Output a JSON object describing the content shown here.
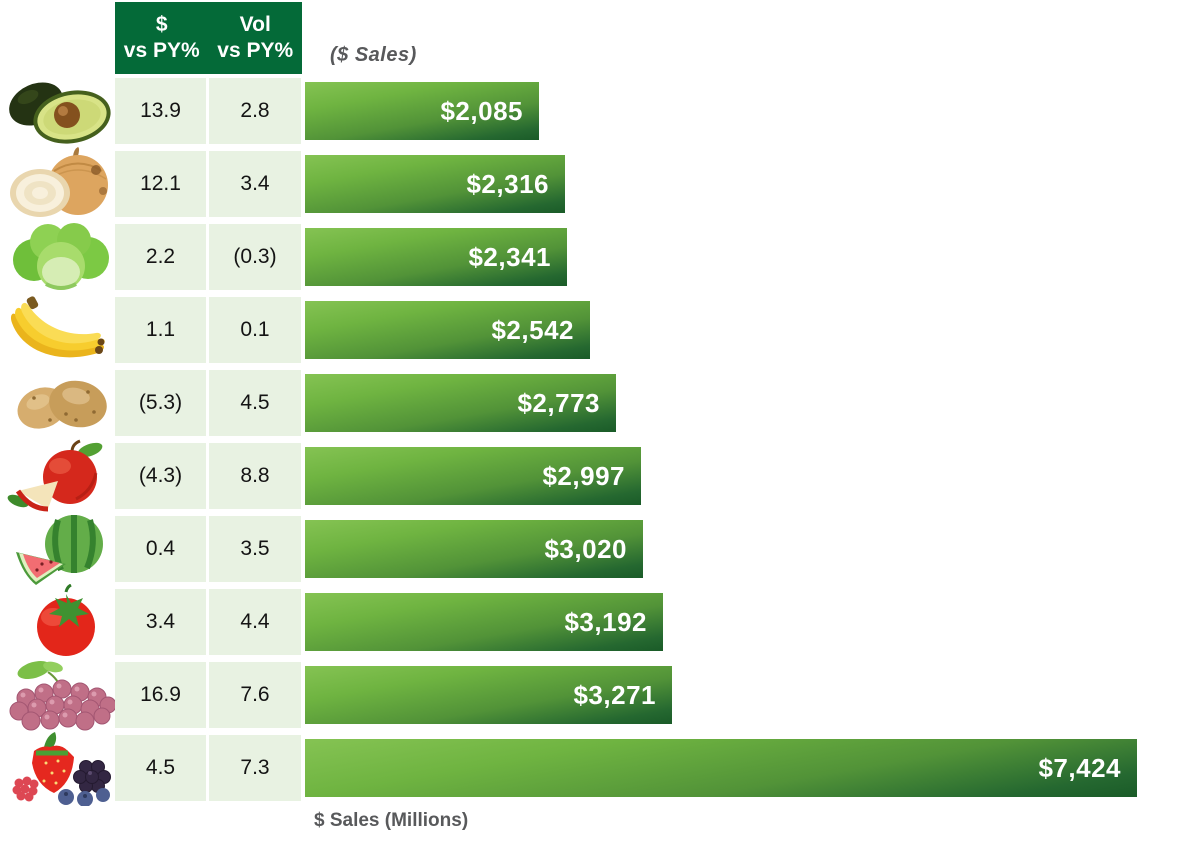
{
  "title": "($ Sales)",
  "axis_label": "$ Sales (Millions)",
  "header": {
    "dollar_col": "$\nvs PY%",
    "vol_col": "Vol\nvs PY%"
  },
  "colors": {
    "header_green": "#046a38",
    "row_bg_green": "#e8f2e2",
    "bar_gradient_top": "#85c353",
    "bar_gradient_bottom": "#1a5b28",
    "label_gray": "#58595b",
    "bar_text": "#ffffff"
  },
  "rows": [
    {
      "item": "avocado",
      "icon": "avocado-icon",
      "dollar_vs_py": "13.9",
      "vol_vs_py": "2.8",
      "sales_label": "$2,085",
      "sales_value": 2085
    },
    {
      "item": "onion",
      "icon": "onion-icon",
      "dollar_vs_py": "12.1",
      "vol_vs_py": "3.4",
      "sales_label": "$2,316",
      "sales_value": 2316
    },
    {
      "item": "lettuce",
      "icon": "lettuce-icon",
      "dollar_vs_py": "2.2",
      "vol_vs_py": "(0.3)",
      "sales_label": "$2,341",
      "sales_value": 2341
    },
    {
      "item": "bananas",
      "icon": "bananas-icon",
      "dollar_vs_py": "1.1",
      "vol_vs_py": "0.1",
      "sales_label": "$2,542",
      "sales_value": 2542
    },
    {
      "item": "potatoes",
      "icon": "potatoes-icon",
      "dollar_vs_py": "(5.3)",
      "vol_vs_py": "4.5",
      "sales_label": "$2,773",
      "sales_value": 2773
    },
    {
      "item": "apples",
      "icon": "apples-icon",
      "dollar_vs_py": "(4.3)",
      "vol_vs_py": "8.8",
      "sales_label": "$2,997",
      "sales_value": 2997
    },
    {
      "item": "watermelon",
      "icon": "watermelon-icon",
      "dollar_vs_py": "0.4",
      "vol_vs_py": "3.5",
      "sales_label": "$3,020",
      "sales_value": 3020
    },
    {
      "item": "tomatoes",
      "icon": "tomatoes-icon",
      "dollar_vs_py": "3.4",
      "vol_vs_py": "4.4",
      "sales_label": "$3,192",
      "sales_value": 3192
    },
    {
      "item": "grapes",
      "icon": "grapes-icon",
      "dollar_vs_py": "16.9",
      "vol_vs_py": "7.6",
      "sales_label": "$3,271",
      "sales_value": 3271
    },
    {
      "item": "berries",
      "icon": "berries-icon",
      "dollar_vs_py": "4.5",
      "vol_vs_py": "7.3",
      "sales_label": "$7,424",
      "sales_value": 7424
    }
  ],
  "chart_data": {
    "type": "bar",
    "orientation": "horizontal",
    "title": "($ Sales)",
    "xlabel": "$ Sales (Millions)",
    "ylabel": "",
    "categories": [
      "Avocado",
      "Onion",
      "Lettuce",
      "Bananas",
      "Potatoes",
      "Apples",
      "Watermelon",
      "Tomatoes",
      "Grapes",
      "Berries"
    ],
    "series": [
      {
        "name": "$ Sales (Millions)",
        "values": [
          2085,
          2316,
          2341,
          2542,
          2773,
          2997,
          3020,
          3192,
          3271,
          7424
        ]
      },
      {
        "name": "$ vs PY%",
        "values": [
          13.9,
          12.1,
          2.2,
          1.1,
          -5.3,
          -4.3,
          0.4,
          3.4,
          16.9,
          4.5
        ]
      },
      {
        "name": "Vol vs PY%",
        "values": [
          2.8,
          3.4,
          -0.3,
          0.1,
          4.5,
          8.8,
          3.5,
          4.4,
          7.6,
          7.3
        ]
      }
    ],
    "bar_labels": [
      "$2,085",
      "$2,316",
      "$2,341",
      "$2,542",
      "$2,773",
      "$2,997",
      "$3,020",
      "$3,192",
      "$3,271",
      "$7,424"
    ],
    "xlim": [
      0,
      7500
    ],
    "grid": false,
    "legend": false
  }
}
